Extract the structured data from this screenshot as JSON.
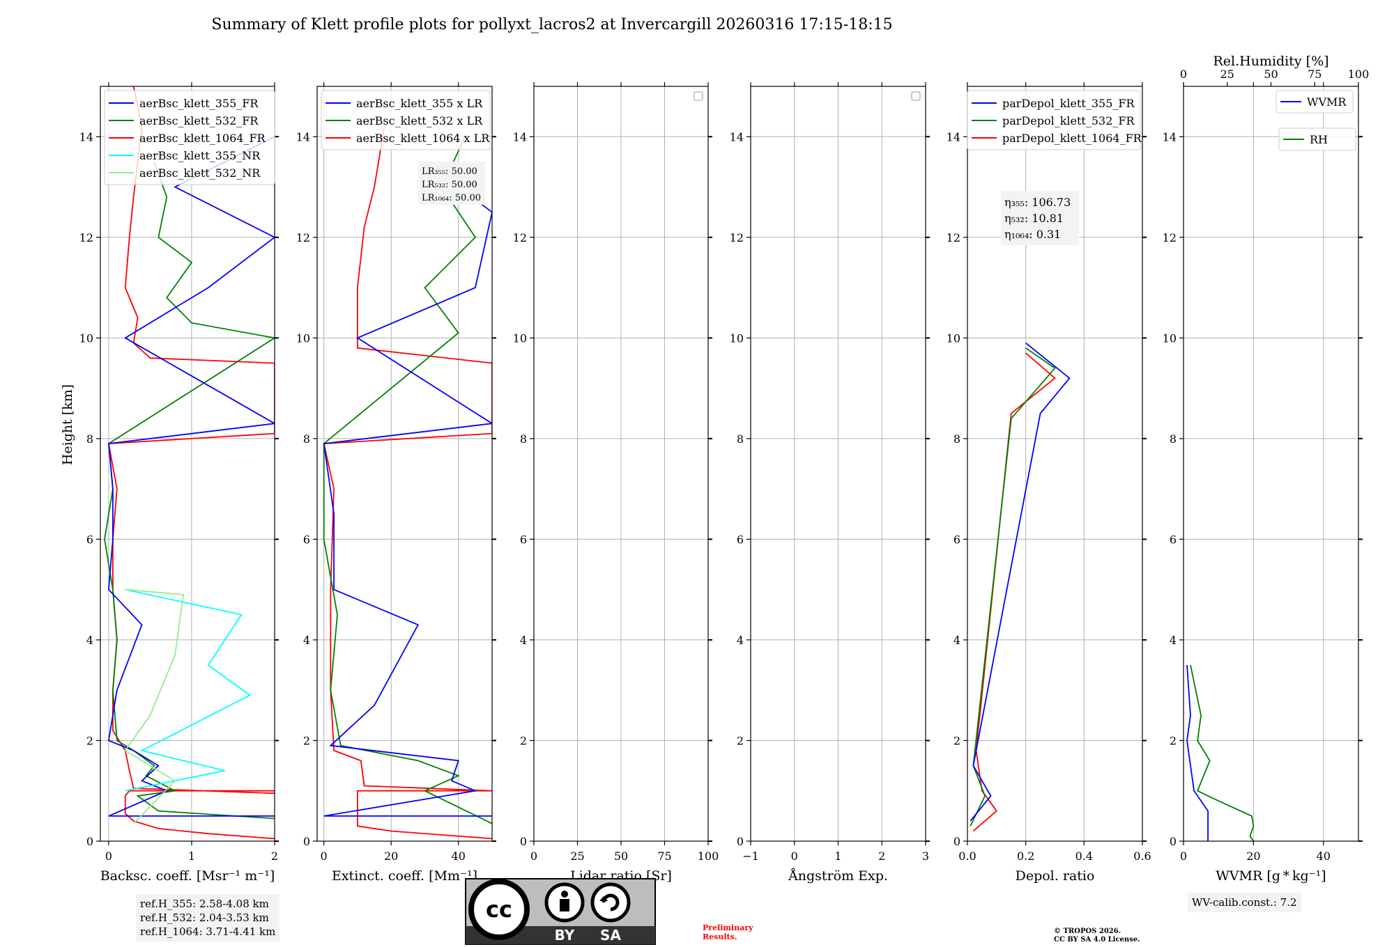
{
  "title": "Summary of Klett profile plots for pollyxt_lacros2 at Invercargill 20260316 17:15-18:15",
  "ylabel": "Height [km]",
  "y_ticks": [
    "0",
    "2",
    "4",
    "6",
    "8",
    "10",
    "12",
    "14"
  ],
  "y_range_km": [
    0,
    15
  ],
  "colors": {
    "c355": "#0000ff",
    "c532": "#008000",
    "c1064": "#ff0000",
    "c355nr": "#00ffff",
    "c532nr": "#90ee90",
    "grid": "#b0b0b0"
  },
  "panels": [
    {
      "xlabel": "Backsc. coeff. [Msr⁻¹ m⁻¹]",
      "xlim": [
        -0.1,
        2
      ],
      "xticks": [
        0,
        1,
        2
      ],
      "xtick_labels": [
        "0",
        "1",
        "2"
      ],
      "legend": [
        "aerBsc_klett_355_FR",
        "aerBsc_klett_532_FR",
        "aerBsc_klett_1064_FR",
        "aerBsc_klett_355_NR",
        "aerBsc_klett_532_NR"
      ],
      "legend_colors": [
        "c355",
        "c532",
        "c1064",
        "c355nr",
        "c532nr"
      ]
    },
    {
      "xlabel": "Extinct. coeff. [Mm⁻¹]",
      "xlim": [
        -2,
        50
      ],
      "xticks": [
        0,
        20,
        40
      ],
      "xtick_labels": [
        "0",
        "20",
        "40"
      ],
      "legend": [
        "aerBsc_klett_355 x LR",
        "aerBsc_klett_532 x LR",
        "aerBsc_klett_1064 x LR"
      ],
      "legend_colors": [
        "c355",
        "c532",
        "c1064"
      ],
      "lr_labels": [
        "LR₃₅₅: 50.00",
        "LR₅₃₂: 50.00",
        "LR₁₀₆₄: 50.00"
      ]
    },
    {
      "xlabel": "Lidar ratio [Sr]",
      "xlim": [
        0,
        100
      ],
      "xticks": [
        0,
        25,
        50,
        75,
        100
      ],
      "xtick_labels": [
        "0",
        "25",
        "50",
        "75",
        "100"
      ]
    },
    {
      "xlabel": "Ångström Exp.",
      "xlim": [
        -1,
        3
      ],
      "xticks": [
        -1,
        0,
        1,
        2,
        3
      ],
      "xtick_labels": [
        "−1",
        "0",
        "1",
        "2",
        "3"
      ]
    },
    {
      "xlabel": "Depol. ratio",
      "xlim": [
        0,
        0.6
      ],
      "xticks": [
        0,
        0.2,
        0.4,
        0.6
      ],
      "xtick_labels": [
        "0.0",
        "0.2",
        "0.4",
        "0.6"
      ],
      "legend": [
        "parDepol_klett_355_FR",
        "parDepol_klett_532_FR",
        "parDepol_klett_1064_FR"
      ],
      "legend_colors": [
        "c355",
        "c532",
        "c1064"
      ],
      "eta_labels": [
        "η₃₅₅: 106.73",
        "η₅₃₂: 10.81",
        "η₁₀₆₄: 0.31"
      ]
    },
    {
      "xlabel": "WVMR [g * kg⁻¹]",
      "xlim": [
        0,
        50
      ],
      "xticks": [
        0,
        20,
        40
      ],
      "xtick_labels": [
        "0",
        "20",
        "40"
      ],
      "top_label": "Rel.Humidity [%]",
      "top_xticks": [
        0,
        25,
        50,
        75,
        100
      ],
      "top_xtick_labels": [
        "0",
        "25",
        "50",
        "75",
        "100"
      ],
      "legend": [
        "WVMR",
        "RH"
      ],
      "legend_colors": [
        "c355",
        "c532"
      ]
    }
  ],
  "chart_data": {
    "type": "line",
    "title": "Summary of Klett profile plots for pollyxt_lacros2 at Invercargill 20260316 17:15-18:15",
    "ylabel": "Height [km]",
    "ylim": [
      0,
      15
    ],
    "series": [
      {
        "panel": 0,
        "name": "aerBsc_klett_1064_FR",
        "color": "c1064",
        "points": [
          [
            2,
            0.05
          ],
          [
            1.2,
            0.15
          ],
          [
            0.6,
            0.25
          ],
          [
            0.3,
            0.4
          ],
          [
            0.2,
            0.55
          ],
          [
            0.2,
            0.9
          ],
          [
            0.25,
            1.0
          ],
          [
            2,
            1.0
          ],
          [
            2,
            0.95
          ],
          [
            0.3,
            1.05
          ],
          [
            0.25,
            1.4
          ],
          [
            0.2,
            1.8
          ],
          [
            0.05,
            2.2
          ],
          [
            0.05,
            3
          ],
          [
            0.1,
            4
          ],
          [
            0.05,
            5
          ],
          [
            0.05,
            6
          ],
          [
            0.1,
            7
          ],
          [
            0.0,
            7.9
          ],
          [
            2,
            8.1
          ],
          [
            2,
            9.5
          ],
          [
            0.5,
            9.6
          ],
          [
            0.3,
            9.9
          ],
          [
            0.35,
            10.4
          ],
          [
            0.2,
            11
          ],
          [
            0.25,
            12
          ],
          [
            0.3,
            12.8
          ],
          [
            0.35,
            13.5
          ],
          [
            0.4,
            14.2
          ],
          [
            0.3,
            15
          ]
        ]
      },
      {
        "panel": 0,
        "name": "aerBsc_klett_532_FR",
        "color": "c532",
        "points": [
          [
            2,
            0.45
          ],
          [
            0.6,
            0.6
          ],
          [
            0.35,
            0.9
          ],
          [
            0.8,
            1.0
          ],
          [
            0.45,
            1.3
          ],
          [
            0.55,
            1.5
          ],
          [
            0.3,
            1.8
          ],
          [
            0.1,
            2.0
          ],
          [
            0.05,
            3
          ],
          [
            0.1,
            4
          ],
          [
            0.05,
            5
          ],
          [
            -0.05,
            6
          ],
          [
            0.05,
            7
          ],
          [
            0.0,
            7.9
          ],
          [
            2,
            10.0
          ],
          [
            1.0,
            10.3
          ],
          [
            0.7,
            10.8
          ],
          [
            1.0,
            11.5
          ],
          [
            0.6,
            12
          ],
          [
            0.7,
            12.8
          ],
          [
            0.55,
            13.5
          ]
        ]
      },
      {
        "panel": 0,
        "name": "aerBsc_klett_355_FR",
        "color": "c355",
        "points": [
          [
            2,
            0.5
          ],
          [
            0.0,
            0.5
          ],
          [
            0.7,
            1.0
          ],
          [
            0.4,
            1.2
          ],
          [
            0.6,
            1.5
          ],
          [
            0.3,
            1.8
          ],
          [
            0.0,
            2.0
          ],
          [
            0.1,
            3
          ],
          [
            0.4,
            4.3
          ],
          [
            0.0,
            5
          ],
          [
            0.05,
            6
          ],
          [
            0.05,
            7
          ],
          [
            0.0,
            7.9
          ],
          [
            2,
            8.3
          ],
          [
            0.2,
            10
          ],
          [
            1.2,
            11
          ],
          [
            2,
            12
          ],
          [
            0.8,
            13
          ],
          [
            2,
            14
          ]
        ]
      },
      {
        "panel": 0,
        "name": "aerBsc_klett_355_NR",
        "color": "c355nr",
        "points": [
          [
            0.2,
            1.0
          ],
          [
            1.4,
            1.4
          ],
          [
            0.4,
            1.8
          ],
          [
            1.7,
            2.9
          ],
          [
            1.2,
            3.5
          ],
          [
            1.6,
            4.5
          ],
          [
            0.2,
            5.0
          ]
        ]
      },
      {
        "panel": 0,
        "name": "aerBsc_klett_532_NR",
        "color": "c532nr",
        "points": [
          [
            0.3,
            0.35
          ],
          [
            0.8,
            1.2
          ],
          [
            0.2,
            1.8
          ],
          [
            0.5,
            2.5
          ],
          [
            0.8,
            3.7
          ],
          [
            0.9,
            4.9
          ],
          [
            0.2,
            5.0
          ]
        ]
      },
      {
        "panel": 1,
        "name": "aerBsc_klett_1064 x LR",
        "color": "c1064",
        "points": [
          [
            50,
            0.05
          ],
          [
            20,
            0.2
          ],
          [
            10,
            0.3
          ],
          [
            10,
            1.0
          ],
          [
            50,
            1.0
          ],
          [
            12,
            1.1
          ],
          [
            11,
            1.6
          ],
          [
            3,
            1.8
          ],
          [
            2,
            3
          ],
          [
            2,
            5
          ],
          [
            3,
            7
          ],
          [
            0,
            7.9
          ],
          [
            50,
            8.1
          ],
          [
            50,
            9.5
          ],
          [
            10,
            9.8
          ],
          [
            10,
            11
          ],
          [
            12,
            12.2
          ],
          [
            15,
            13
          ],
          [
            18,
            14.2
          ]
        ]
      },
      {
        "panel": 1,
        "name": "aerBsc_klett_532 x LR",
        "color": "c532",
        "points": [
          [
            50,
            0.35
          ],
          [
            30,
            1.0
          ],
          [
            40,
            1.3
          ],
          [
            28,
            1.6
          ],
          [
            5,
            1.9
          ],
          [
            2,
            3
          ],
          [
            4,
            4.5
          ],
          [
            0,
            6
          ],
          [
            0,
            7.9
          ],
          [
            40,
            10.1
          ],
          [
            30,
            11
          ],
          [
            45,
            12
          ],
          [
            35,
            13
          ],
          [
            42,
            14
          ]
        ]
      },
      {
        "panel": 1,
        "name": "aerBsc_klett_355 x LR",
        "color": "c355",
        "points": [
          [
            50,
            0.5
          ],
          [
            0,
            0.5
          ],
          [
            45,
            1.0
          ],
          [
            38,
            1.2
          ],
          [
            40,
            1.6
          ],
          [
            2,
            1.9
          ],
          [
            15,
            2.7
          ],
          [
            28,
            4.3
          ],
          [
            3,
            5
          ],
          [
            3,
            6.5
          ],
          [
            0,
            7.9
          ],
          [
            50,
            8.3
          ],
          [
            10,
            10
          ],
          [
            45,
            11
          ],
          [
            50,
            12.5
          ],
          [
            30,
            13.5
          ]
        ]
      },
      {
        "panel": 4,
        "name": "parDepol_klett_1064_FR",
        "color": "c1064",
        "points": [
          [
            0.02,
            0.2
          ],
          [
            0.1,
            0.6
          ],
          [
            0.05,
            1.0
          ],
          [
            0.03,
            1.8
          ],
          [
            0.15,
            8.5
          ],
          [
            0.3,
            9.2
          ],
          [
            0.2,
            9.7
          ]
        ]
      },
      {
        "panel": 4,
        "name": "parDepol_klett_532_FR",
        "color": "c532",
        "points": [
          [
            0.01,
            0.3
          ],
          [
            0.06,
            0.9
          ],
          [
            0.02,
            1.5
          ],
          [
            0.15,
            8.4
          ],
          [
            0.3,
            9.4
          ],
          [
            0.2,
            9.8
          ]
        ]
      },
      {
        "panel": 4,
        "name": "parDepol_klett_355_FR",
        "color": "c355",
        "points": [
          [
            0.01,
            0.4
          ],
          [
            0.08,
            0.9
          ],
          [
            0.02,
            1.5
          ],
          [
            0.25,
            8.5
          ],
          [
            0.35,
            9.2
          ],
          [
            0.2,
            9.9
          ]
        ]
      },
      {
        "panel": 5,
        "name": "WVMR",
        "color": "c355",
        "points": [
          [
            7,
            0.0
          ],
          [
            7,
            0.6
          ],
          [
            3,
            1.0
          ],
          [
            1,
            2.0
          ],
          [
            2,
            2.5
          ],
          [
            1,
            3.5
          ]
        ]
      },
      {
        "panel": 5,
        "name": "RH",
        "color": "c532",
        "points": [
          [
            40,
            0.0
          ],
          [
            38,
            0.1
          ],
          [
            40,
            0.3
          ],
          [
            39,
            0.5
          ],
          [
            20,
            0.8
          ],
          [
            8,
            1.0
          ],
          [
            15,
            1.6
          ],
          [
            8,
            2.0
          ],
          [
            10,
            2.5
          ],
          [
            4,
            3.5
          ]
        ]
      }
    ]
  },
  "notes": {
    "ref_heights": [
      "ref.H_355: 2.58-4.08 km",
      "ref.H_532: 2.04-3.53 km",
      "ref.H_1064: 3.71-4.41 km"
    ],
    "wv_calib": "WV-calib.const.: 7.2",
    "preliminary": [
      "Preliminary",
      "Results."
    ],
    "copyright": [
      "© TROPOS 2026.",
      "CC BY SA 4.0 License."
    ],
    "license_badge": [
      "BY",
      "SA"
    ]
  }
}
